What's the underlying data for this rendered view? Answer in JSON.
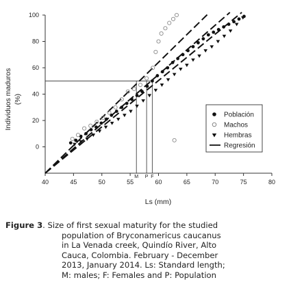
{
  "chart_data": {
    "type": "scatter",
    "xlabel": "Ls (mm)",
    "ylabel": "Individuos maduros",
    "ylabel_unit": "(%)",
    "xlim": [
      40,
      80
    ],
    "ylim": [
      -20,
      100
    ],
    "xticks": [
      40,
      45,
      50,
      55,
      60,
      65,
      70,
      75,
      80
    ],
    "yticks": [
      0,
      20,
      40,
      60,
      80,
      100
    ],
    "legend_position": "center-right",
    "legend": [
      {
        "key": "poblacion",
        "label": "Población",
        "marker": "filled-circle"
      },
      {
        "key": "machos",
        "label": "Machos",
        "marker": "open-circle"
      },
      {
        "key": "hembras",
        "label": "Hembras",
        "marker": "triangle-down"
      },
      {
        "key": "regresion",
        "label": "Regresión",
        "marker": "line"
      }
    ],
    "threshold_y": 50,
    "markers": [
      {
        "label": "M",
        "x": 56.1
      },
      {
        "label": "P",
        "x": 57.9
      },
      {
        "label": "F",
        "x": 58.9
      }
    ],
    "series": [
      {
        "key": "regresion",
        "lines": [
          {
            "x": [
              40,
              69
            ],
            "y": [
              -20,
              102
            ]
          },
          {
            "x": [
              40,
              72.6
            ],
            "y": [
              -20,
              102
            ]
          },
          {
            "x": [
              40,
              74.7
            ],
            "y": [
              -20,
              102
            ]
          }
        ]
      },
      {
        "key": "poblacion",
        "x": [
          44.5,
          45.4,
          46.3,
          47.2,
          48.1,
          49.0,
          49.9,
          50.8,
          51.7,
          52.6,
          53.5,
          54.4,
          55.3,
          56.2,
          57.1,
          58.0,
          58.9,
          59.8,
          60.7,
          61.6,
          62.5,
          63.4,
          64.3,
          65.2,
          66.1,
          67.0,
          67.9,
          68.8,
          69.7,
          70.6,
          71.5,
          72.4,
          73.3,
          74.2,
          75.1
        ],
        "y": [
          3,
          5,
          8,
          10,
          13,
          15,
          18,
          21,
          24,
          27,
          30,
          33,
          36,
          39,
          42,
          46,
          50,
          54,
          57,
          60,
          64,
          67,
          70,
          73,
          76,
          79,
          82,
          85,
          87,
          89,
          91,
          93,
          95,
          97,
          99
        ]
      },
      {
        "key": "machos",
        "x": [
          44.8,
          45.8,
          46.9,
          48.0,
          49.1,
          50.2,
          51.3,
          52.4,
          53.5,
          54.6,
          55.7,
          56.8,
          57.9,
          59.0,
          59.5,
          60.0,
          60.5,
          61.2,
          61.9,
          62.6,
          63.2,
          62.8
        ],
        "y": [
          6,
          9,
          14,
          16,
          19,
          22,
          26,
          30,
          36,
          42,
          44,
          47,
          52,
          60,
          72,
          80,
          86,
          90,
          94,
          97,
          100,
          5
        ]
      },
      {
        "key": "hembras",
        "x": [
          45.2,
          46.3,
          47.4,
          48.5,
          49.6,
          50.7,
          51.8,
          52.9,
          54.0,
          55.1,
          56.2,
          57.3,
          58.4,
          59.5,
          60.6,
          61.7,
          62.8,
          63.9,
          65.0,
          66.1,
          67.2,
          68.3,
          69.4,
          70.5,
          71.6,
          72.7,
          73.8,
          74.9
        ],
        "y": [
          2,
          4,
          6,
          9,
          12,
          15,
          18,
          21,
          24,
          27,
          31,
          35,
          39,
          43,
          47,
          51,
          55,
          59,
          62,
          66,
          69,
          73,
          76,
          80,
          84,
          88,
          93,
          98
        ]
      }
    ]
  },
  "caption": {
    "lead": "Figure 3",
    "lines": [
      ". Size of first sexual maturity for the studied",
      "population of Bryconamericus caucanus",
      "in La Venada creek, Quindío River, Alto",
      "Cauca, Colombia. February - December",
      "2013, January 2014. Ls: Standard length;",
      "M: males; F: Females and P: Population"
    ]
  }
}
